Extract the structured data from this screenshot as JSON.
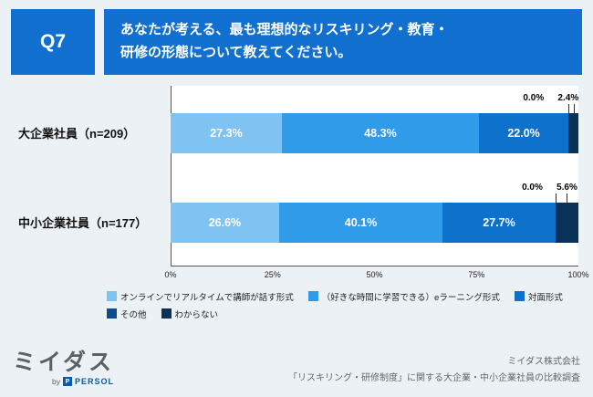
{
  "header": {
    "question_number": "Q7",
    "question_title": "あなたが考える、最も理想的なリスキリング・教育・\n研修の形態について教えてください。"
  },
  "colors": {
    "banner_blue": "#1170CF",
    "background": "#ECF1F6"
  },
  "chart_data": {
    "type": "bar",
    "variant": "horizontal_stacked",
    "title": "",
    "categories": [
      "大企業社員（n=209）",
      "中小企業社員（n=177）"
    ],
    "series": [
      {
        "name": "オンラインでリアルタイムで講師が話す形式",
        "color": "#7EC3F1",
        "values": [
          27.3,
          26.6
        ]
      },
      {
        "name": "（好きな時間に学習できる）eラーニング形式",
        "color": "#309BE9",
        "values": [
          48.3,
          40.1
        ]
      },
      {
        "name": "対面形式",
        "color": "#0E71CB",
        "values": [
          22.0,
          27.7
        ]
      },
      {
        "name": "その他",
        "color": "#0B4C8F",
        "values": [
          0.0,
          0.0
        ]
      },
      {
        "name": "わからない",
        "color": "#0A3158",
        "values": [
          2.4,
          5.6
        ]
      }
    ],
    "x_ticks": [
      "0%",
      "25%",
      "50%",
      "75%",
      "100%"
    ],
    "xlim": [
      0,
      100
    ],
    "legend_rows": [
      [
        0,
        1,
        2
      ],
      [
        3,
        4
      ]
    ],
    "inside_label_min": 10,
    "grid": false,
    "legend_position": "bottom"
  },
  "footer": {
    "logo_text": "ミイダス",
    "logo_by": "by",
    "logo_badge": "P",
    "logo_brand": "PERSOL",
    "credit_company": "ミイダス株式会社",
    "credit_survey": "「リスキリング・研修制度」に関する大企業・中小企業社員の比較調査"
  }
}
